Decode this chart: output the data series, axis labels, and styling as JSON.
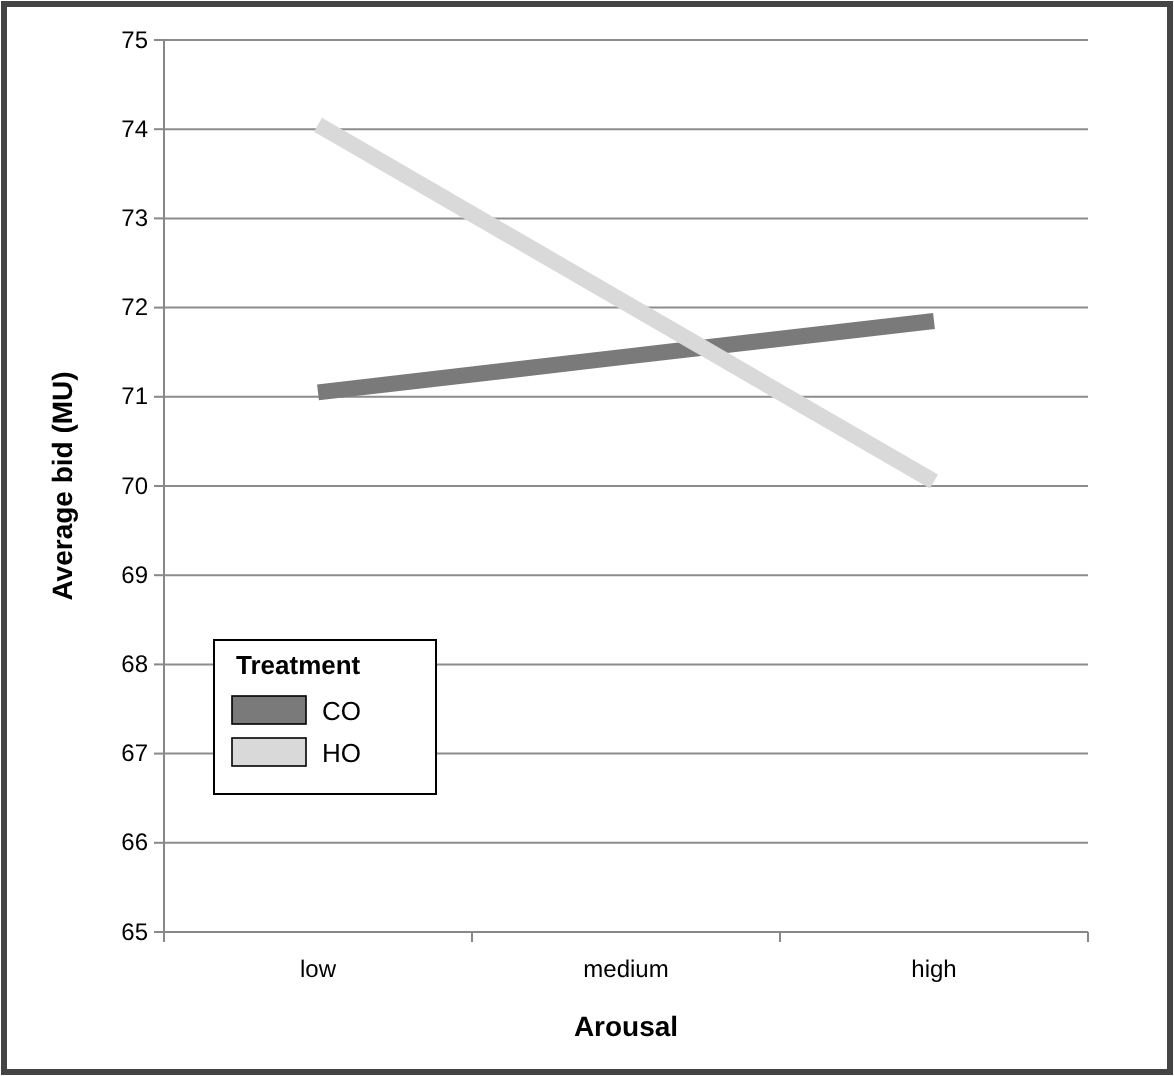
{
  "chart_data": {
    "type": "line",
    "xlabel": "Arousal",
    "ylabel": "Average bid (MU)",
    "legend_title": "Treatment",
    "categories": [
      "low",
      "medium",
      "high"
    ],
    "series": [
      {
        "name": "CO",
        "color": "#7a7a7a",
        "values": [
          71.05,
          71.45,
          71.85
        ]
      },
      {
        "name": "HO",
        "color": "#d9d9d9",
        "values": [
          74.05,
          72.05,
          70.05
        ]
      }
    ],
    "ylim": [
      65,
      75
    ],
    "yticks": [
      65,
      66,
      67,
      68,
      69,
      70,
      71,
      72,
      73,
      74,
      75
    ],
    "grid": "y",
    "legend": "bottom left",
    "line_style": "solid"
  }
}
